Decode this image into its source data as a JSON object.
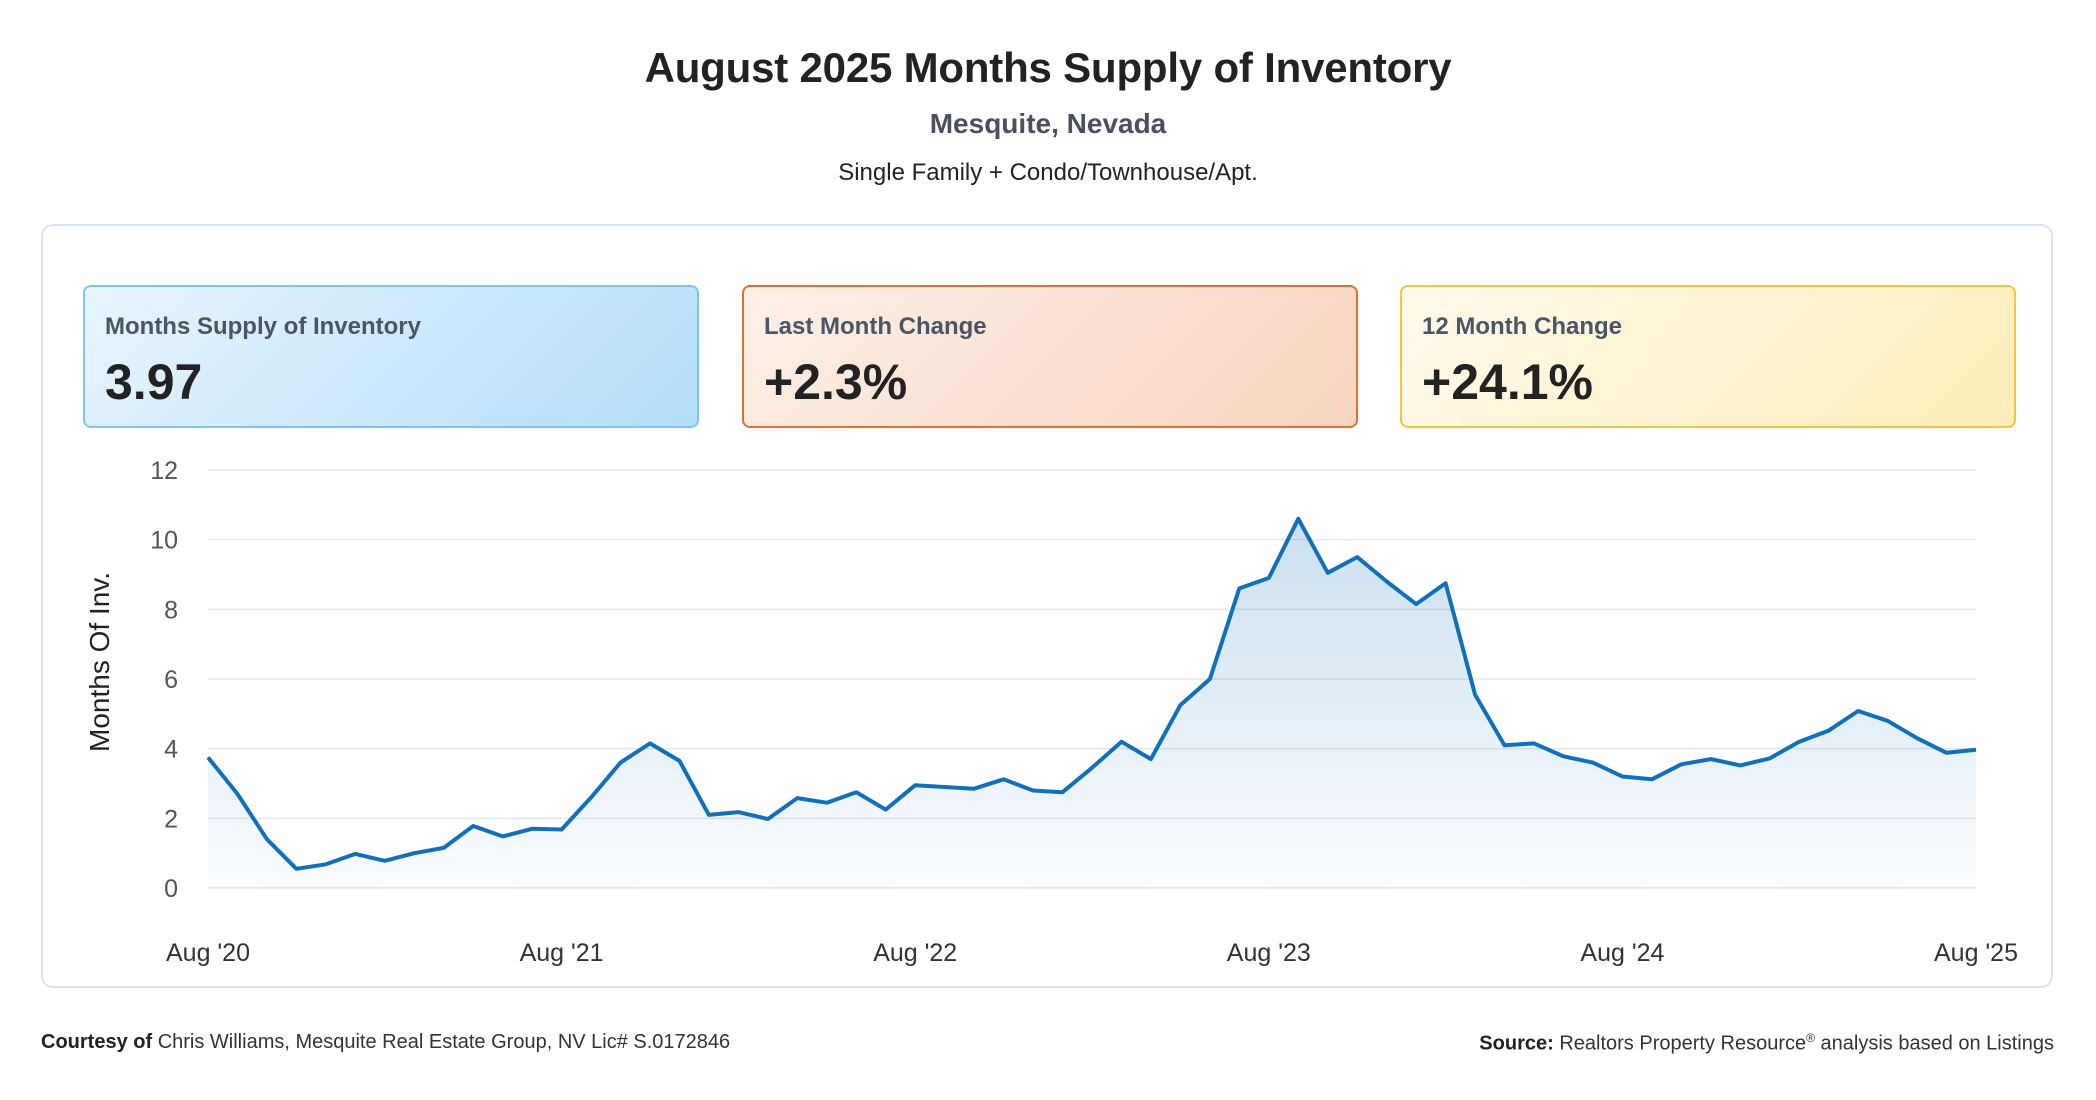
{
  "header": {
    "title": "August 2025 Months Supply of Inventory",
    "location": "Mesquite, Nevada",
    "property_types": "Single Family + Condo/Townhouse/Apt."
  },
  "cards": [
    {
      "label": "Months Supply of Inventory",
      "value": "3.97"
    },
    {
      "label": "Last Month Change",
      "value": "+2.3%"
    },
    {
      "label": "12 Month Change",
      "value": "+24.1%"
    }
  ],
  "footer": {
    "courtesy_label": "Courtesy of",
    "courtesy_text": "Chris Williams, Mesquite Real Estate Group, NV Lic# S.0172846",
    "source_label": "Source:",
    "source_name": "Realtors Property Resource",
    "source_mark": "®",
    "source_rest": "analysis based on Listings"
  },
  "colors": {
    "line": "#1170b8",
    "grid": "#e3e6ea",
    "tick_text": "#555555"
  },
  "chart_data": {
    "type": "area",
    "ylabel": "Months Of Inv.",
    "xlabel": "",
    "ylim": [
      0,
      12
    ],
    "yticks": [
      0,
      2,
      4,
      6,
      8,
      10,
      12
    ],
    "grid": true,
    "x_ticks": [
      {
        "index": 0,
        "label": "Aug '20"
      },
      {
        "index": 12,
        "label": "Aug '21"
      },
      {
        "index": 24,
        "label": "Aug '22"
      },
      {
        "index": 36,
        "label": "Aug '23"
      },
      {
        "index": 48,
        "label": "Aug '24"
      },
      {
        "index": 60,
        "label": "Aug '25"
      }
    ],
    "series": [
      {
        "values": [
          3.75,
          2.7,
          1.4,
          0.55,
          0.68,
          0.98,
          0.78,
          1.0,
          1.15,
          1.78,
          1.48,
          1.7,
          1.68,
          2.6,
          3.6,
          4.15,
          3.65,
          2.1,
          2.18,
          1.98,
          2.58,
          2.45,
          2.75,
          2.25,
          2.95,
          2.9,
          2.85,
          3.12,
          2.8,
          2.75,
          3.45,
          4.2,
          3.7,
          5.25,
          6.0,
          8.6,
          8.9,
          10.6,
          9.05,
          9.5,
          8.8,
          8.15,
          8.75,
          5.55,
          4.1,
          4.15,
          3.78,
          3.6,
          3.2,
          3.12,
          3.55,
          3.7,
          3.52,
          3.72,
          4.2,
          4.52,
          5.08,
          4.8,
          4.3,
          3.88,
          3.97
        ]
      }
    ]
  }
}
